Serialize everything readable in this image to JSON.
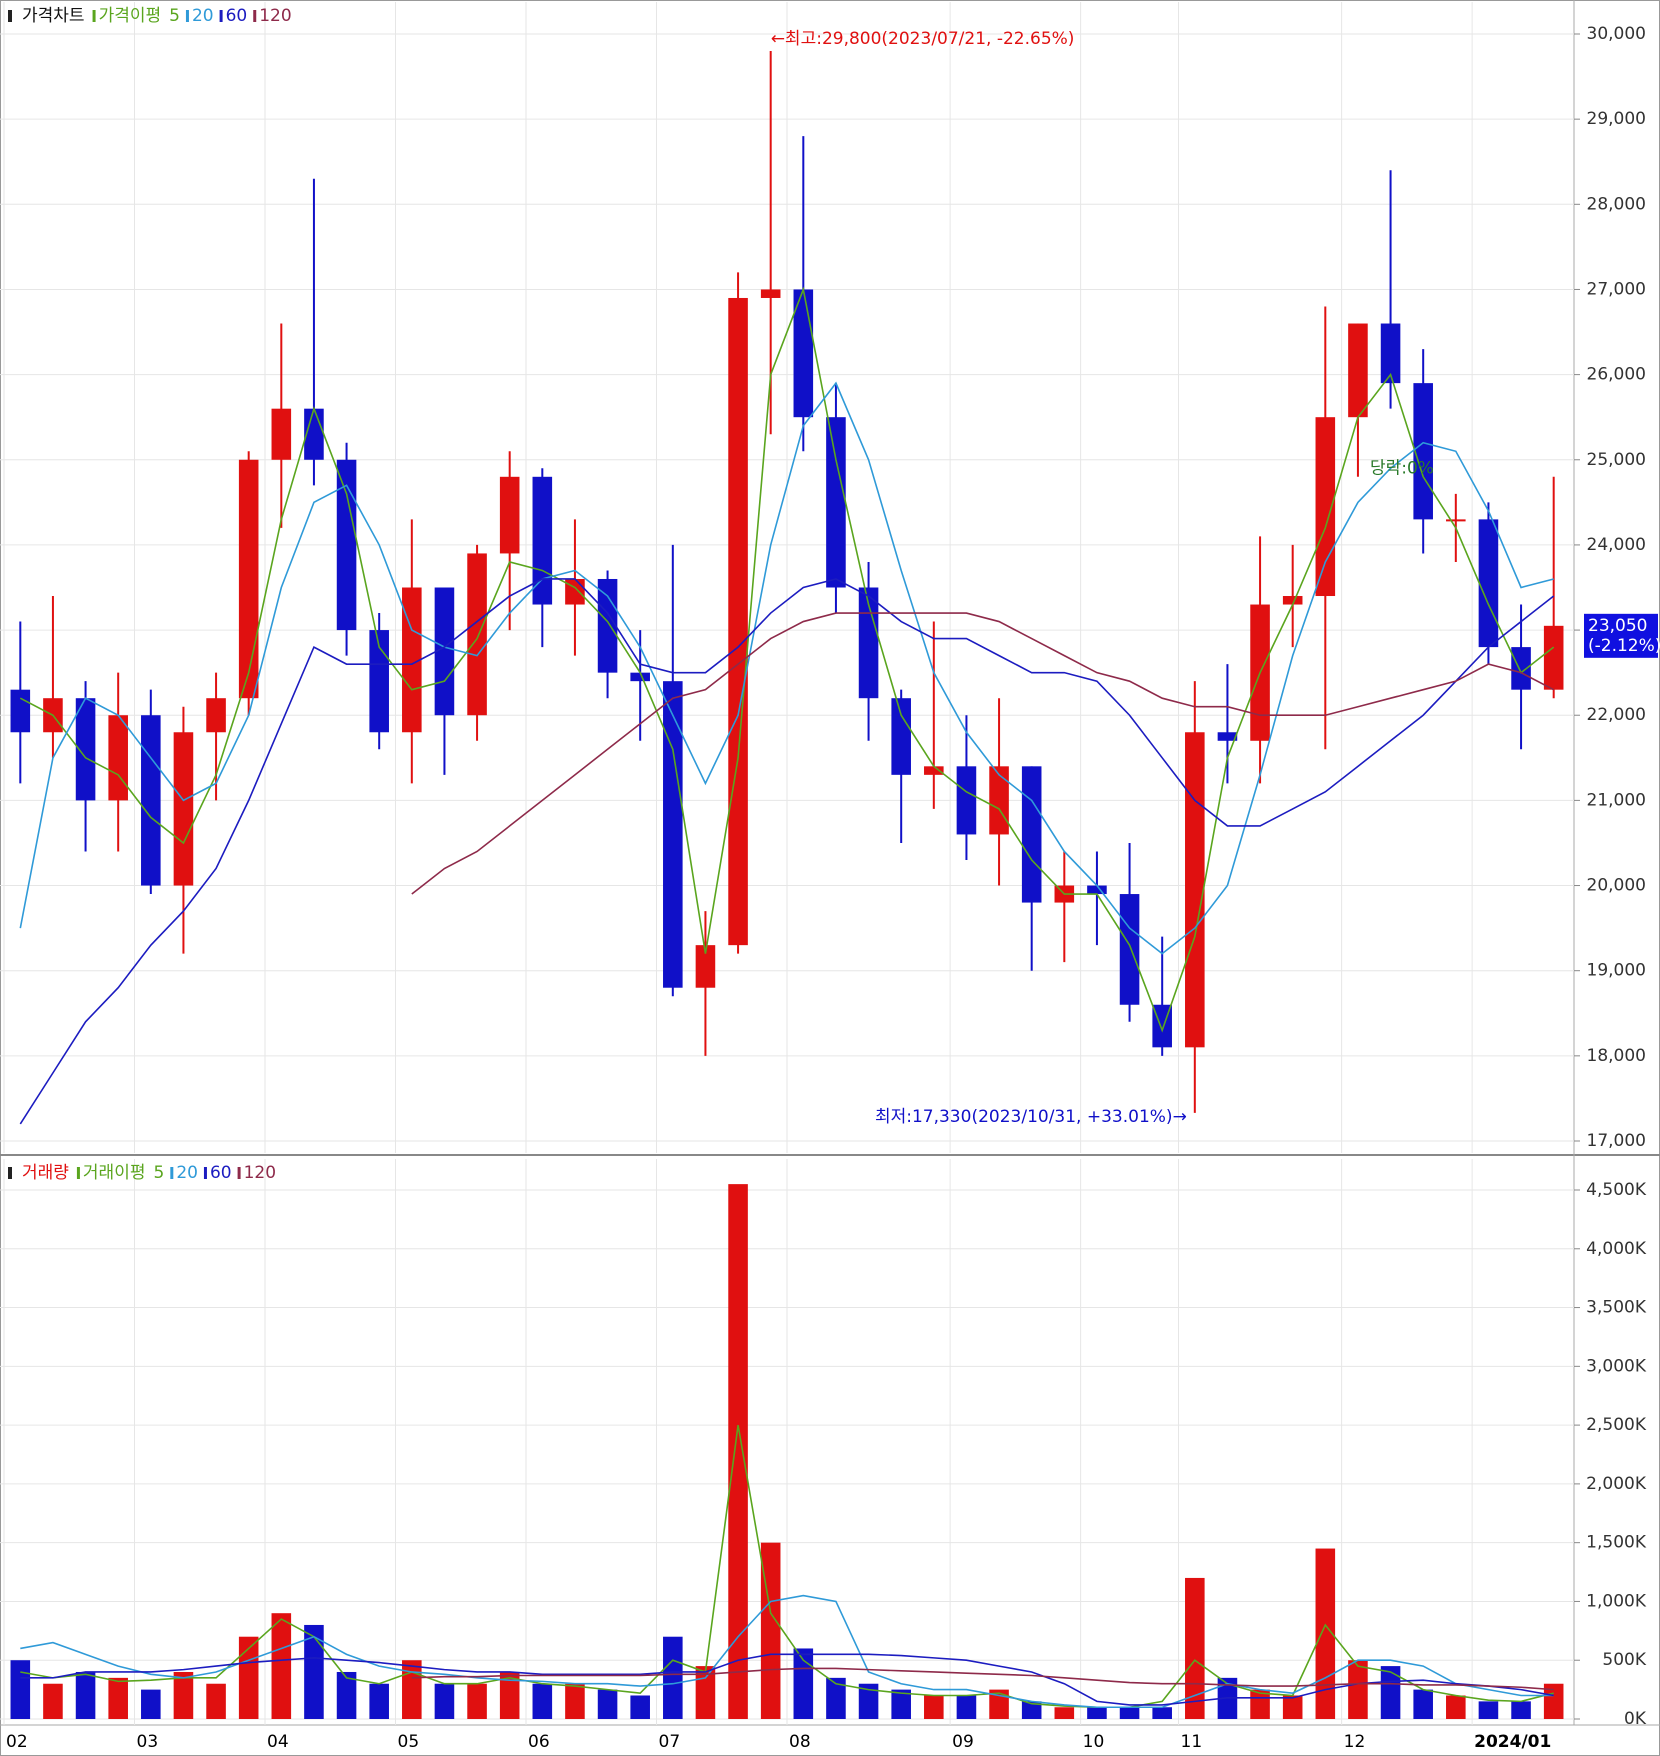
{
  "chart_data": [
    {
      "type": "candlestick",
      "title": "가격차트",
      "ma_title": "가격이평",
      "up_color": "#e01010",
      "down_color": "#1010c8",
      "open": [
        22300,
        21800,
        22200,
        21000,
        22000,
        20000,
        21800,
        22200,
        25000,
        25600,
        25000,
        23000,
        21800,
        23500,
        22000,
        23900,
        24800,
        23300,
        23600,
        22500,
        22400,
        18800,
        19300,
        26900,
        27000,
        25500,
        23500,
        22200,
        21300,
        21400,
        20600,
        21400,
        19800,
        20000,
        19900,
        18600,
        18100,
        21800,
        21700,
        23300,
        23400,
        25500,
        26600,
        25900,
        24300,
        24300,
        22800,
        22300
      ],
      "high": [
        23100,
        23400,
        22400,
        22500,
        22300,
        22100,
        22500,
        25100,
        26600,
        28300,
        25200,
        23200,
        24300,
        23500,
        24000,
        25100,
        24900,
        24300,
        23700,
        23000,
        24000,
        19700,
        27200,
        29800,
        28800,
        25900,
        23800,
        22300,
        23100,
        22000,
        22200,
        21400,
        20400,
        20400,
        20500,
        19400,
        22400,
        22600,
        24100,
        24000,
        26800,
        26600,
        28400,
        26300,
        24600,
        24500,
        23300,
        24800
      ],
      "low": [
        21200,
        21500,
        20400,
        20400,
        19900,
        19200,
        21000,
        22000,
        24200,
        24700,
        22700,
        21600,
        21200,
        21300,
        21700,
        23000,
        22800,
        22700,
        22200,
        21700,
        18700,
        18000,
        19200,
        25300,
        25100,
        23200,
        21700,
        20500,
        20900,
        20300,
        20000,
        19000,
        19100,
        19300,
        18400,
        18000,
        17330,
        21200,
        21200,
        22800,
        21600,
        24800,
        25600,
        23900,
        23800,
        22600,
        21600,
        22200
      ],
      "close": [
        21800,
        22200,
        21000,
        22000,
        20000,
        21800,
        22200,
        25000,
        25600,
        25000,
        23000,
        21800,
        23500,
        22000,
        23900,
        24800,
        23300,
        23600,
        22500,
        22400,
        18800,
        19300,
        26900,
        27000,
        25500,
        23500,
        22200,
        21300,
        21400,
        20600,
        21400,
        19800,
        20000,
        19900,
        18600,
        18100,
        21800,
        21700,
        23300,
        23400,
        25500,
        26600,
        25900,
        24300,
        24300,
        22800,
        22300,
        23050
      ],
      "series": [
        {
          "name": "5",
          "color": "#5aa51e",
          "values": [
            22200,
            22000,
            21500,
            21300,
            20800,
            20500,
            21300,
            22500,
            24300,
            25600,
            24600,
            22800,
            22300,
            22400,
            22900,
            23800,
            23700,
            23500,
            23100,
            22500,
            21600,
            19200,
            21500,
            26000,
            27000,
            25000,
            23300,
            22000,
            21400,
            21100,
            20900,
            20300,
            19900,
            19900,
            19300,
            18300,
            19400,
            21500,
            22500,
            23300,
            24200,
            25500,
            26000,
            24800,
            24200,
            23300,
            22500,
            22800
          ]
        },
        {
          "name": "20",
          "color": "#2f9ad8",
          "values": [
            19500,
            21500,
            22200,
            22000,
            21500,
            21000,
            21200,
            22000,
            23500,
            24500,
            24700,
            24000,
            23000,
            22800,
            22700,
            23200,
            23600,
            23700,
            23400,
            22800,
            22000,
            21200,
            22000,
            24000,
            25400,
            25900,
            25000,
            23700,
            22500,
            21800,
            21300,
            21000,
            20400,
            20000,
            19500,
            19200,
            19500,
            20000,
            21300,
            22700,
            23800,
            24500,
            24900,
            25200,
            25100,
            24400,
            23500,
            23600
          ]
        },
        {
          "name": "60",
          "color": "#1c1cc0",
          "values": [
            17200,
            17800,
            18400,
            18800,
            19300,
            19700,
            20200,
            21000,
            21900,
            22800,
            22600,
            22600,
            22600,
            22800,
            23100,
            23400,
            23600,
            23600,
            23200,
            22600,
            22500,
            22500,
            22800,
            23200,
            23500,
            23600,
            23400,
            23100,
            22900,
            22900,
            22700,
            22500,
            22500,
            22400,
            22000,
            21500,
            21000,
            20700,
            20700,
            20900,
            21100,
            21400,
            21700,
            22000,
            22400,
            22800,
            23100,
            23400
          ]
        },
        {
          "name": "120",
          "color": "#8e2a4a",
          "values": [
            null,
            null,
            null,
            null,
            null,
            null,
            null,
            null,
            null,
            null,
            null,
            null,
            19900,
            20200,
            20400,
            20700,
            21000,
            21300,
            21600,
            21900,
            22200,
            22300,
            22600,
            22900,
            23100,
            23200,
            23200,
            23200,
            23200,
            23200,
            23100,
            22900,
            22700,
            22500,
            22400,
            22200,
            22100,
            22100,
            22000,
            22000,
            22000,
            22100,
            22200,
            22300,
            22400,
            22600,
            22500,
            22300
          ]
        }
      ],
      "ylim": [
        17000,
        30000
      ],
      "yticks": [
        {
          "value": 17000,
          "label": "17,000"
        },
        {
          "value": 18000,
          "label": "18,000"
        },
        {
          "value": 19000,
          "label": "19,000"
        },
        {
          "value": 20000,
          "label": "20,000"
        },
        {
          "value": 21000,
          "label": "21,000"
        },
        {
          "value": 22000,
          "label": "22,000"
        },
        {
          "value": 23000,
          "label": "23,000"
        },
        {
          "value": 24000,
          "label": "24,000"
        },
        {
          "value": 25000,
          "label": "25,000"
        },
        {
          "value": 26000,
          "label": "26,000"
        },
        {
          "value": 27000,
          "label": "27,000"
        },
        {
          "value": 28000,
          "label": "28,000"
        },
        {
          "value": 29000,
          "label": "29,000"
        },
        {
          "value": 30000,
          "label": "30,000"
        }
      ],
      "high_annotation": "←최고:29,800(2023/07/21, -22.65%)",
      "low_annotation": "최저:17,330(2023/10/31, +33.01%)→",
      "event_label": "당락:0%",
      "last_price_label": "23,050",
      "last_change_label": "(-2.12%)"
    },
    {
      "type": "bar",
      "title": "거래량",
      "ma_title": "거래이평",
      "categories": [
        "02",
        null,
        null,
        null,
        "03",
        null,
        null,
        null,
        "04",
        null,
        null,
        null,
        "05",
        null,
        null,
        null,
        "06",
        null,
        null,
        null,
        "07",
        null,
        null,
        null,
        "08",
        null,
        null,
        null,
        null,
        "09",
        null,
        null,
        null,
        "10",
        null,
        null,
        "11",
        null,
        null,
        null,
        null,
        "12",
        null,
        null,
        null,
        "2024/01",
        null,
        null
      ],
      "values": [
        500,
        300,
        400,
        350,
        250,
        400,
        300,
        700,
        900,
        800,
        400,
        300,
        500,
        300,
        300,
        400,
        300,
        300,
        250,
        200,
        700,
        450,
        4550,
        1500,
        600,
        350,
        300,
        250,
        200,
        200,
        250,
        150,
        100,
        100,
        100,
        100,
        1200,
        350,
        250,
        200,
        1450,
        500,
        450,
        250,
        200,
        150,
        150,
        300
      ],
      "series": [
        {
          "name": "5",
          "color": "#5aa51e",
          "values": [
            400,
            350,
            380,
            320,
            330,
            350,
            350,
            600,
            850,
            700,
            350,
            300,
            400,
            300,
            300,
            350,
            300,
            280,
            250,
            220,
            500,
            400,
            2500,
            900,
            500,
            300,
            250,
            220,
            200,
            200,
            220,
            130,
            110,
            100,
            100,
            150,
            500,
            300,
            220,
            200,
            800,
            450,
            400,
            250,
            200,
            160,
            150,
            220
          ]
        },
        {
          "name": "20",
          "color": "#2f9ad8",
          "values": [
            600,
            650,
            550,
            450,
            380,
            350,
            400,
            500,
            600,
            700,
            550,
            450,
            400,
            380,
            350,
            330,
            320,
            300,
            300,
            280,
            300,
            350,
            700,
            1000,
            1050,
            1000,
            400,
            300,
            250,
            250,
            200,
            150,
            120,
            100,
            100,
            100,
            200,
            300,
            250,
            220,
            350,
            500,
            500,
            450,
            300,
            250,
            200,
            200
          ]
        },
        {
          "name": "60",
          "color": "#1c1cc0",
          "values": [
            350,
            350,
            400,
            400,
            400,
            420,
            450,
            480,
            500,
            520,
            500,
            480,
            450,
            420,
            400,
            400,
            380,
            380,
            380,
            380,
            400,
            400,
            500,
            550,
            550,
            550,
            550,
            540,
            520,
            500,
            450,
            400,
            300,
            150,
            120,
            120,
            150,
            180,
            180,
            180,
            250,
            300,
            320,
            330,
            300,
            280,
            250,
            200
          ]
        },
        {
          "name": "120",
          "color": "#8e2a4a",
          "values": [
            null,
            null,
            null,
            null,
            null,
            null,
            null,
            null,
            null,
            null,
            null,
            null,
            350,
            360,
            360,
            370,
            370,
            370,
            370,
            370,
            380,
            380,
            400,
            420,
            430,
            430,
            420,
            410,
            400,
            390,
            380,
            370,
            350,
            330,
            310,
            300,
            300,
            290,
            280,
            280,
            290,
            300,
            300,
            290,
            290,
            280,
            270,
            250
          ]
        }
      ],
      "ylim": [
        0,
        4500
      ],
      "yticks": [
        {
          "value": 0,
          "label": "0K"
        },
        {
          "value": 500,
          "label": "500K"
        },
        {
          "value": 1000,
          "label": "1,000K"
        },
        {
          "value": 1500,
          "label": "1,500K"
        },
        {
          "value": 2000,
          "label": "2,000K"
        },
        {
          "value": 2500,
          "label": "2,500K"
        },
        {
          "value": 3000,
          "label": "3,000K"
        },
        {
          "value": 3500,
          "label": "3,500K"
        },
        {
          "value": 4000,
          "label": "4,000K"
        },
        {
          "value": 4500,
          "label": "4,500K"
        }
      ]
    }
  ]
}
